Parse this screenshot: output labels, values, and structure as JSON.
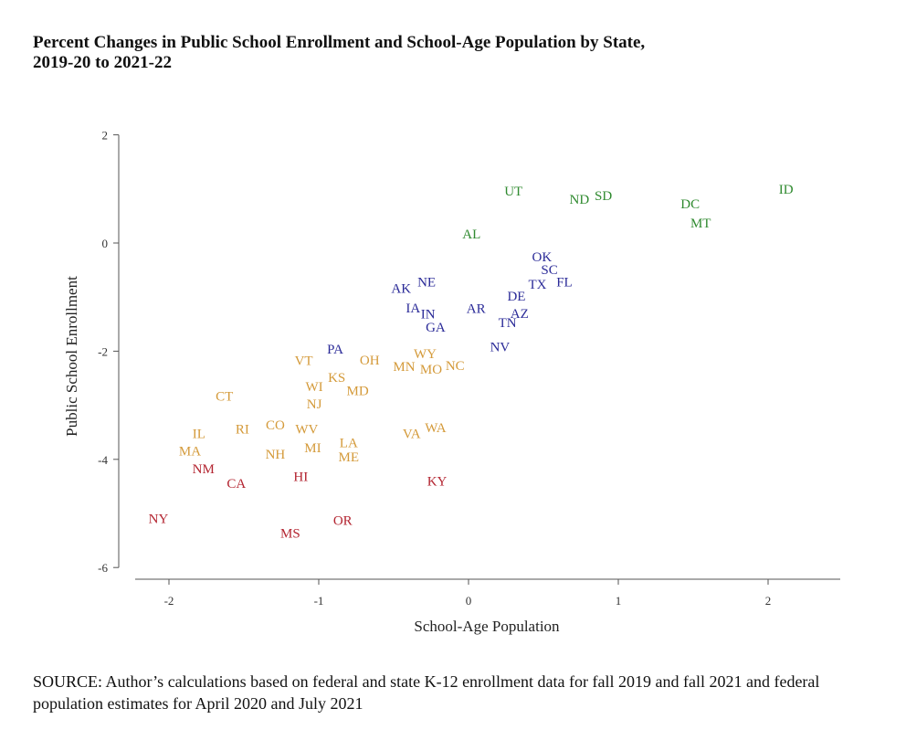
{
  "chart_data": {
    "type": "scatter",
    "title": "Percent Changes in Public School Enrollment and School-Age Population by State, 2019-20 to 2021-22",
    "xlabel": "School-Age Population",
    "ylabel": "Public School Enrollment",
    "xlim": [
      -2.2,
      2.5
    ],
    "ylim": [
      -6,
      2
    ],
    "xticks": [
      "-2",
      "-1",
      "0",
      "1",
      "2"
    ],
    "yticks": [
      "2",
      "0",
      "-2",
      "-4",
      "-6"
    ],
    "grid": false,
    "colors": {
      "green": "#2f8a2f",
      "blue": "#2b2b98",
      "orange": "#d49a3a",
      "red": "#b32430"
    },
    "points": [
      {
        "label": "UT",
        "x": 0.3,
        "y": 0.96,
        "group": "green"
      },
      {
        "label": "ND",
        "x": 0.74,
        "y": 0.81,
        "group": "green"
      },
      {
        "label": "SD",
        "x": 0.9,
        "y": 0.88,
        "group": "green"
      },
      {
        "label": "DC",
        "x": 1.48,
        "y": 0.73,
        "group": "green"
      },
      {
        "label": "MT",
        "x": 1.55,
        "y": 0.37,
        "group": "green"
      },
      {
        "label": "ID",
        "x": 2.12,
        "y": 1.0,
        "group": "green"
      },
      {
        "label": "AL",
        "x": 0.02,
        "y": 0.17,
        "group": "green"
      },
      {
        "label": "OK",
        "x": 0.49,
        "y": -0.25,
        "group": "blue"
      },
      {
        "label": "SC",
        "x": 0.54,
        "y": -0.49,
        "group": "blue"
      },
      {
        "label": "TX",
        "x": 0.46,
        "y": -0.76,
        "group": "blue"
      },
      {
        "label": "FL",
        "x": 0.64,
        "y": -0.72,
        "group": "blue"
      },
      {
        "label": "DE",
        "x": 0.32,
        "y": -0.98,
        "group": "blue"
      },
      {
        "label": "AZ",
        "x": 0.34,
        "y": -1.3,
        "group": "blue"
      },
      {
        "label": "TN",
        "x": 0.26,
        "y": -1.47,
        "group": "blue"
      },
      {
        "label": "AR",
        "x": 0.05,
        "y": -1.21,
        "group": "blue"
      },
      {
        "label": "NV",
        "x": 0.21,
        "y": -1.92,
        "group": "blue"
      },
      {
        "label": "AK",
        "x": -0.45,
        "y": -0.84,
        "group": "blue"
      },
      {
        "label": "NE",
        "x": -0.28,
        "y": -0.72,
        "group": "blue"
      },
      {
        "label": "IA",
        "x": -0.37,
        "y": -1.2,
        "group": "blue"
      },
      {
        "label": "IN",
        "x": -0.27,
        "y": -1.31,
        "group": "blue"
      },
      {
        "label": "GA",
        "x": -0.22,
        "y": -1.55,
        "group": "blue"
      },
      {
        "label": "PA",
        "x": -0.89,
        "y": -1.96,
        "group": "blue"
      },
      {
        "label": "VT",
        "x": -1.1,
        "y": -2.17,
        "group": "orange"
      },
      {
        "label": "OH",
        "x": -0.66,
        "y": -2.16,
        "group": "orange"
      },
      {
        "label": "WY",
        "x": -0.29,
        "y": -2.04,
        "group": "orange"
      },
      {
        "label": "MN",
        "x": -0.43,
        "y": -2.28,
        "group": "orange"
      },
      {
        "label": "MO",
        "x": -0.25,
        "y": -2.33,
        "group": "orange"
      },
      {
        "label": "NC",
        "x": -0.09,
        "y": -2.26,
        "group": "orange"
      },
      {
        "label": "KS",
        "x": -0.88,
        "y": -2.48,
        "group": "orange"
      },
      {
        "label": "WI",
        "x": -1.03,
        "y": -2.65,
        "group": "orange"
      },
      {
        "label": "MD",
        "x": -0.74,
        "y": -2.73,
        "group": "orange"
      },
      {
        "label": "NJ",
        "x": -1.03,
        "y": -2.97,
        "group": "orange"
      },
      {
        "label": "CT",
        "x": -1.63,
        "y": -2.83,
        "group": "orange"
      },
      {
        "label": "IL",
        "x": -1.8,
        "y": -3.52,
        "group": "orange"
      },
      {
        "label": "RI",
        "x": -1.51,
        "y": -3.44,
        "group": "orange"
      },
      {
        "label": "CO",
        "x": -1.29,
        "y": -3.36,
        "group": "orange"
      },
      {
        "label": "WV",
        "x": -1.08,
        "y": -3.44,
        "group": "orange"
      },
      {
        "label": "VA",
        "x": -0.38,
        "y": -3.52,
        "group": "orange"
      },
      {
        "label": "WA",
        "x": -0.22,
        "y": -3.41,
        "group": "orange"
      },
      {
        "label": "MA",
        "x": -1.86,
        "y": -3.84,
        "group": "orange"
      },
      {
        "label": "NH",
        "x": -1.29,
        "y": -3.9,
        "group": "orange"
      },
      {
        "label": "MI",
        "x": -1.04,
        "y": -3.78,
        "group": "orange"
      },
      {
        "label": "LA",
        "x": -0.8,
        "y": -3.69,
        "group": "orange"
      },
      {
        "label": "ME",
        "x": -0.8,
        "y": -3.95,
        "group": "orange"
      },
      {
        "label": "NM",
        "x": -1.77,
        "y": -4.17,
        "group": "red"
      },
      {
        "label": "CA",
        "x": -1.55,
        "y": -4.44,
        "group": "red"
      },
      {
        "label": "HI",
        "x": -1.12,
        "y": -4.32,
        "group": "red"
      },
      {
        "label": "KY",
        "x": -0.21,
        "y": -4.4,
        "group": "red"
      },
      {
        "label": "NY",
        "x": -2.07,
        "y": -5.09,
        "group": "red"
      },
      {
        "label": "OR",
        "x": -0.84,
        "y": -5.13,
        "group": "red"
      },
      {
        "label": "MS",
        "x": -1.19,
        "y": -5.36,
        "group": "red"
      }
    ]
  },
  "source": "SOURCE: Author’s calculations based on federal and state K-12 enrollment data for fall 2019 and fall 2021 and federal population estimates for April 2020 and July 2021"
}
